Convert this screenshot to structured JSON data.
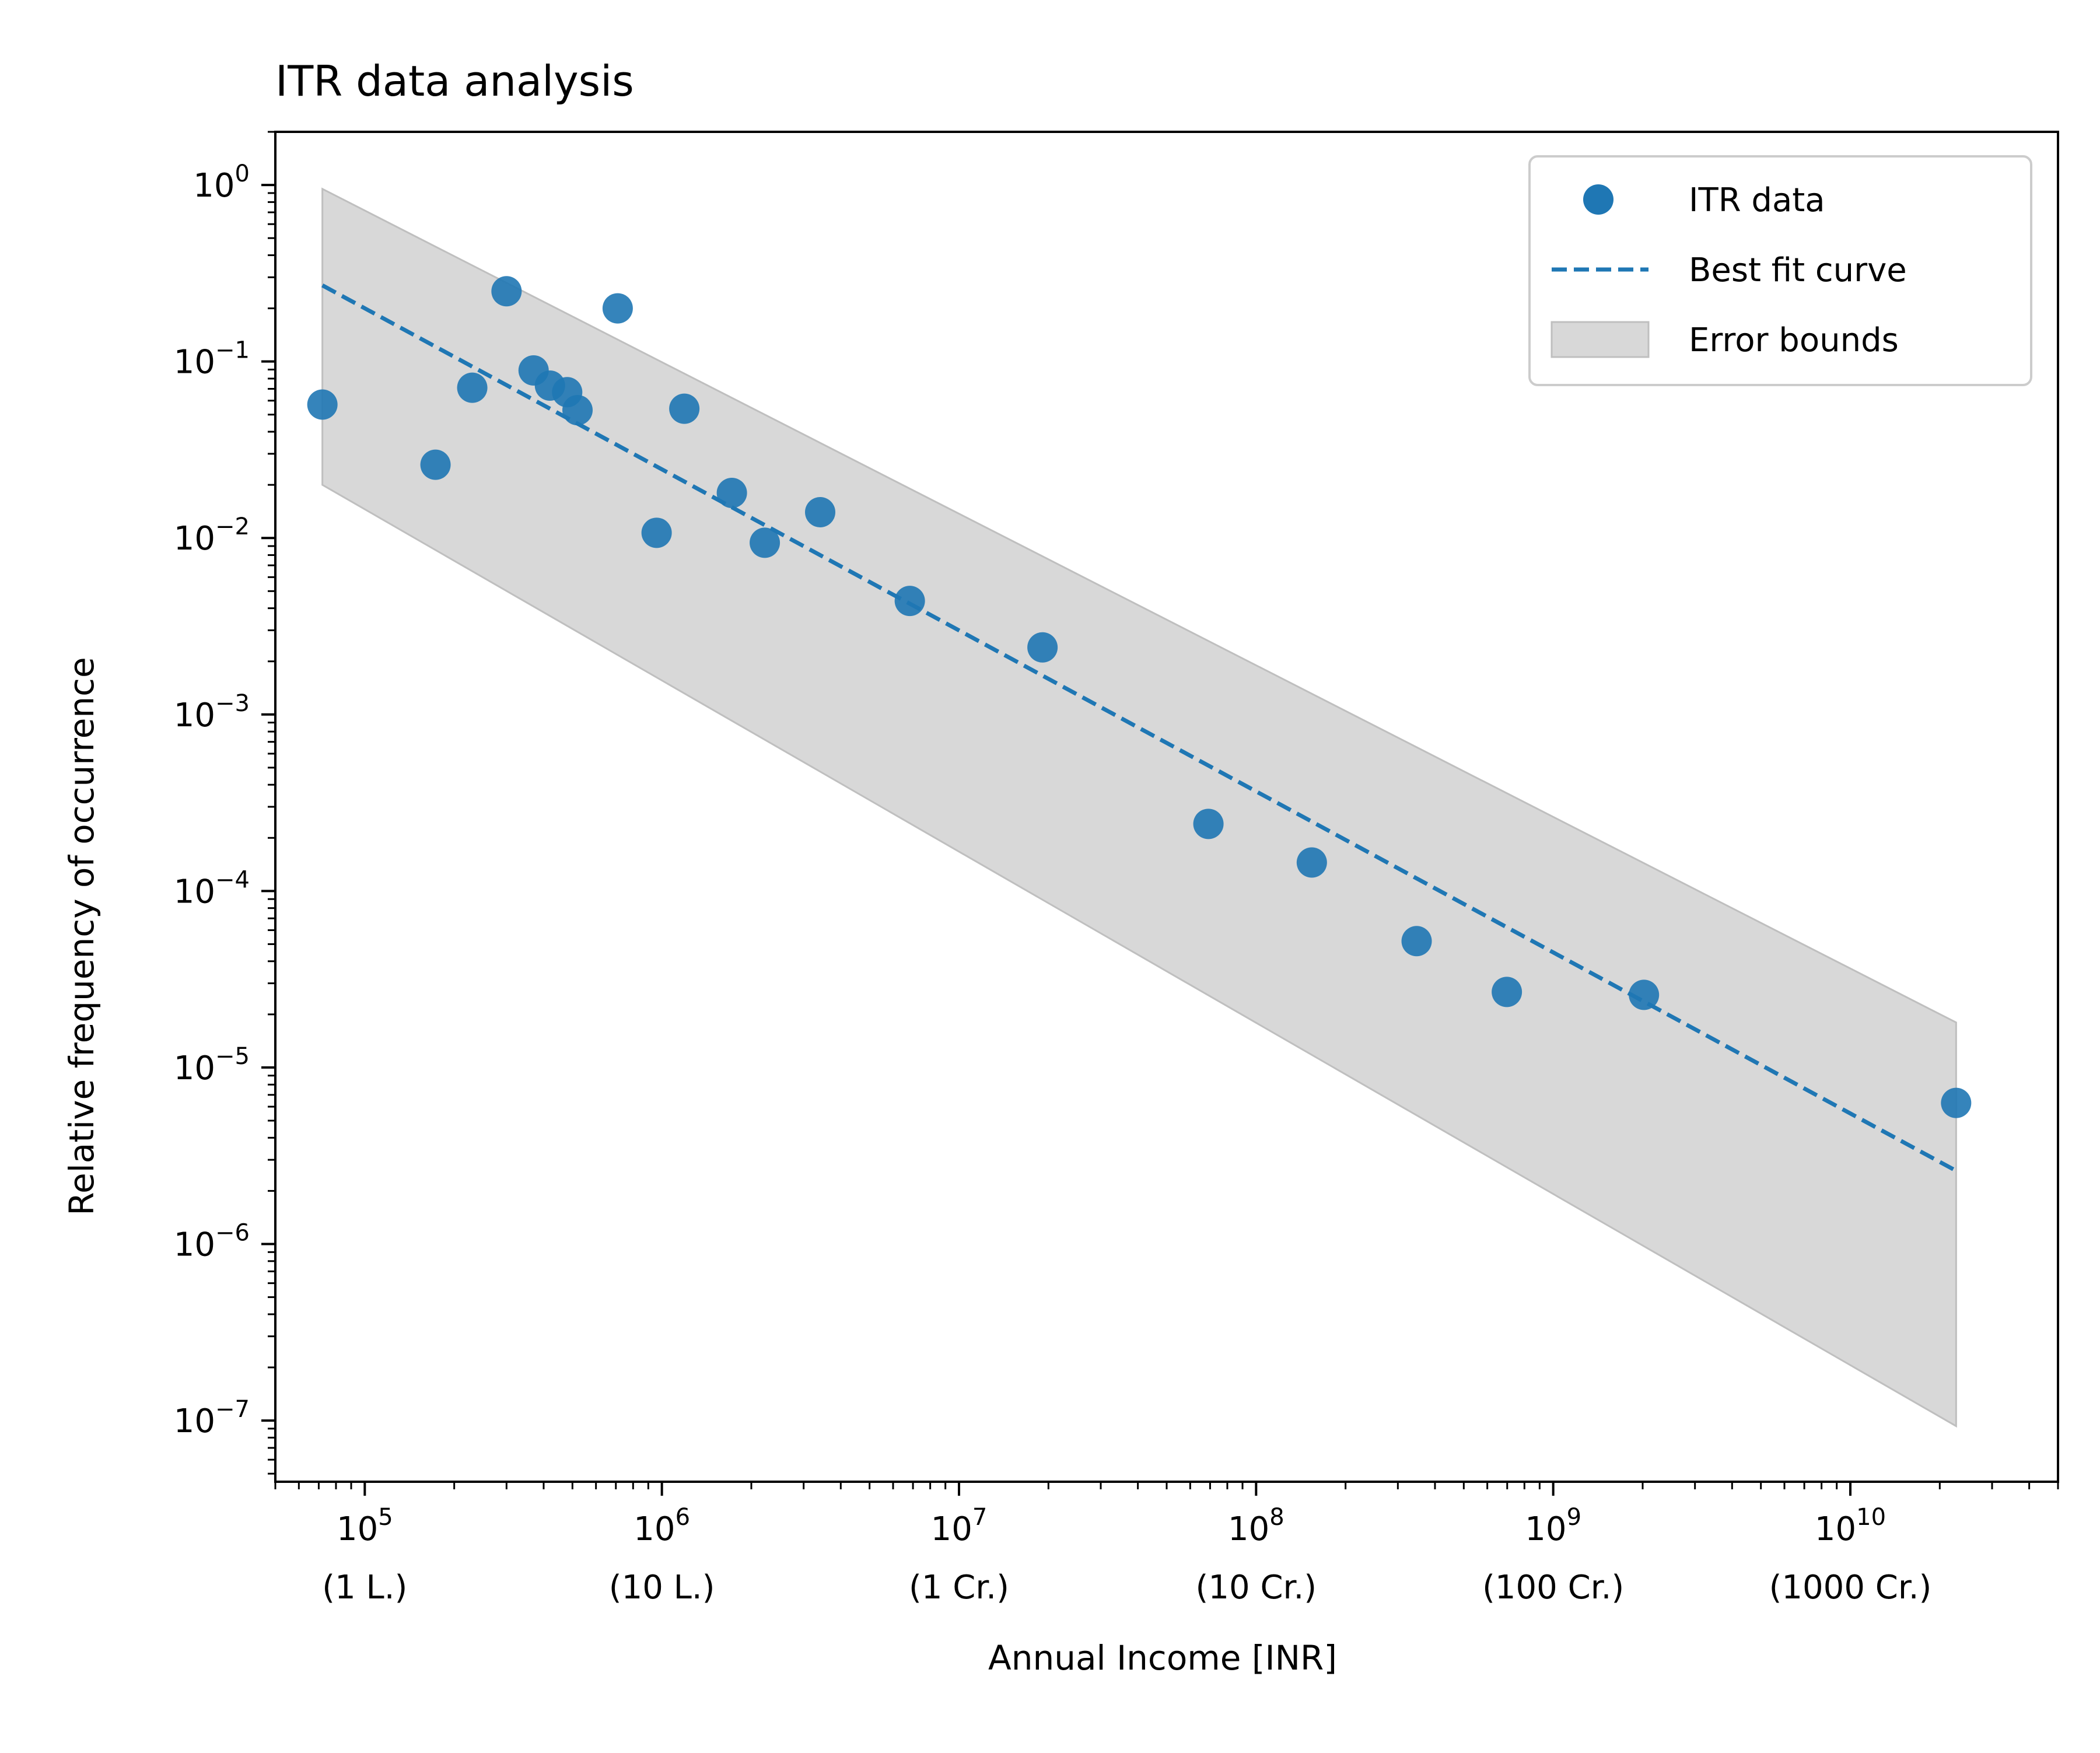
{
  "chart_data": {
    "type": "scatter",
    "title": "ITR data analysis",
    "xlabel": "Annual Income [INR]",
    "ylabel": "Relative frequency of occurrence",
    "xscale": "log",
    "yscale": "log",
    "xlim": [
      50000,
      50000000000
    ],
    "ylim": [
      4.5e-08,
      2
    ],
    "x_ticks": [
      {
        "value": 100000,
        "base": "10",
        "exp": "5",
        "sub": "(1 L.)"
      },
      {
        "value": 1000000,
        "base": "10",
        "exp": "6",
        "sub": "(10 L.)"
      },
      {
        "value": 10000000,
        "base": "10",
        "exp": "7",
        "sub": "(1 Cr.)"
      },
      {
        "value": 100000000,
        "base": "10",
        "exp": "8",
        "sub": "(10 Cr.)"
      },
      {
        "value": 1000000000,
        "base": "10",
        "exp": "9",
        "sub": "(100 Cr.)"
      },
      {
        "value": 10000000000,
        "base": "10",
        "exp": "10",
        "sub": "(1000 Cr.)"
      }
    ],
    "y_ticks": [
      {
        "value": 1,
        "base": "10",
        "exp": "0"
      },
      {
        "value": 0.1,
        "base": "10",
        "exp": "−1"
      },
      {
        "value": 0.01,
        "base": "10",
        "exp": "−2"
      },
      {
        "value": 0.001,
        "base": "10",
        "exp": "−3"
      },
      {
        "value": 0.0001,
        "base": "10",
        "exp": "−4"
      },
      {
        "value": 1e-05,
        "base": "10",
        "exp": "−5"
      },
      {
        "value": 1e-06,
        "base": "10",
        "exp": "−6"
      },
      {
        "value": 1e-07,
        "base": "10",
        "exp": "−7"
      }
    ],
    "series": [
      {
        "name": "ITR data",
        "kind": "scatter",
        "color": "#1f77b4",
        "points": [
          [
            72000,
            0.057
          ],
          [
            173000,
            0.026
          ],
          [
            230000,
            0.071
          ],
          [
            300000,
            0.25
          ],
          [
            370000,
            0.089
          ],
          [
            420000,
            0.073
          ],
          [
            480000,
            0.067
          ],
          [
            520000,
            0.053
          ],
          [
            710000,
            0.2
          ],
          [
            960000,
            0.0107
          ],
          [
            1190000,
            0.054
          ],
          [
            1720000,
            0.018
          ],
          [
            2220000,
            0.0094
          ],
          [
            3410000,
            0.014
          ],
          [
            6830000,
            0.0044
          ],
          [
            19100000,
            0.0024
          ],
          [
            69100000,
            0.00024
          ],
          [
            154000000,
            0.000145
          ],
          [
            347000000,
            5.2e-05
          ],
          [
            698000000,
            2.68e-05
          ],
          [
            2020000000,
            2.58e-05
          ],
          [
            22700000000,
            6.3e-06
          ]
        ]
      },
      {
        "name": "Best fit curve",
        "kind": "line",
        "style": "dashed",
        "color": "#1f77b4",
        "points": [
          [
            72000,
            0.27
          ],
          [
            22700000000,
            2.6e-06
          ]
        ]
      },
      {
        "name": "Error bounds",
        "kind": "band",
        "color": "#d8d8d8",
        "upper": [
          [
            72000,
            0.95
          ],
          [
            22700000000,
            1.8e-05
          ]
        ],
        "lower": [
          [
            72000,
            0.02
          ],
          [
            22700000000,
            9.3e-08
          ]
        ]
      }
    ],
    "grid": false,
    "legend_position": "top-right"
  }
}
